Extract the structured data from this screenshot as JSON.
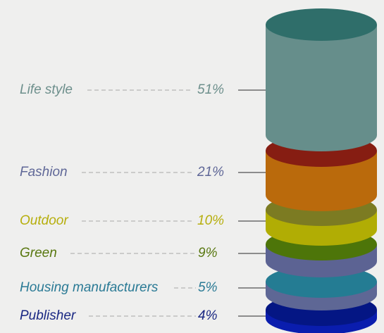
{
  "chart_data": {
    "type": "stacked-cylinder",
    "categories": [
      "Life style",
      "Fashion",
      "Outdoor",
      "Green",
      "Housing manufacturers",
      "Publisher"
    ],
    "values": [
      51,
      21,
      10,
      9,
      5,
      4
    ],
    "value_labels": [
      "51%",
      "21%",
      "10%",
      "9%",
      "5%",
      "4%"
    ],
    "unit": "%",
    "colors": {
      "Life style": {
        "side": "#668e8b",
        "top": "#2f6e6a",
        "text": "#6d8f8c"
      },
      "Fashion": {
        "side": "#ba6a0c",
        "top": "#861d12",
        "text": "#5f6797"
      },
      "Outdoor": {
        "side": "#b1ad04",
        "top": "#7c7b22",
        "text": "#b6ae0c"
      },
      "Green": {
        "side": "#5c6393",
        "top": "#4d7509",
        "text": "#58770f"
      },
      "Housing manufacturers": {
        "side": "#5e6795",
        "top": "#247c93",
        "text": "#2a7a95"
      },
      "Publisher": {
        "side": "#0a1dae",
        "top": "#041684",
        "text": "#1a2883"
      }
    },
    "leader_color": "#a7a7a7",
    "connector_color": "#6c6c6c"
  }
}
